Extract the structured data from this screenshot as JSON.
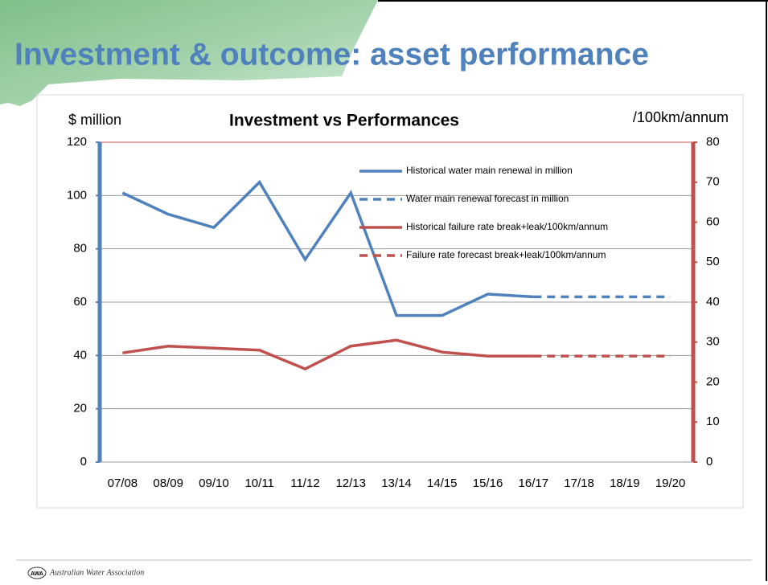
{
  "slide_title": "Investment & outcome: asset performance",
  "footer": {
    "logo": "AWA",
    "organization": "Australian Water Association"
  },
  "chart_data": {
    "type": "line",
    "title": "Investment vs Performances",
    "y_label": "$ million",
    "y2_label": "/100km/annum",
    "categories": [
      "07/08",
      "08/09",
      "09/10",
      "10/11",
      "11/12",
      "12/13",
      "13/14",
      "14/15",
      "15/16",
      "16/17",
      "17/18",
      "18/19",
      "19/20"
    ],
    "series": [
      {
        "name": "Historical water main renewal in million",
        "color": "#4f81bd",
        "dashed": false,
        "values": [
          101,
          93,
          88,
          105,
          76,
          101,
          55,
          55,
          63,
          62,
          null,
          null,
          null
        ]
      },
      {
        "name": "Water main renewal forecast in million",
        "color": "#4f81bd",
        "dashed": true,
        "values": [
          null,
          null,
          null,
          null,
          null,
          null,
          null,
          null,
          null,
          62,
          62,
          62,
          62
        ]
      },
      {
        "name": "Historical failure rate break+leak/100km/annum",
        "color": "#c0504d",
        "dashed": false,
        "axis": "y2",
        "values": [
          27.3,
          29,
          28.5,
          28,
          23.3,
          29,
          30.5,
          27.5,
          26.5,
          26.5,
          null,
          null,
          null
        ]
      },
      {
        "name": "Failure rate forecast break+leak/100km/annum",
        "color": "#c0504d",
        "dashed": true,
        "axis": "y2",
        "values": [
          null,
          null,
          null,
          null,
          null,
          null,
          null,
          null,
          null,
          26.5,
          26.5,
          26.5,
          26.5
        ]
      }
    ],
    "ylim": [
      0,
      120
    ],
    "yticks": [
      0,
      20,
      40,
      60,
      80,
      100,
      120
    ],
    "y2lim": [
      0,
      80
    ],
    "y2ticks": [
      0,
      10,
      20,
      30,
      40,
      50,
      60,
      70,
      80
    ],
    "grid": true,
    "legend": "top-right"
  }
}
